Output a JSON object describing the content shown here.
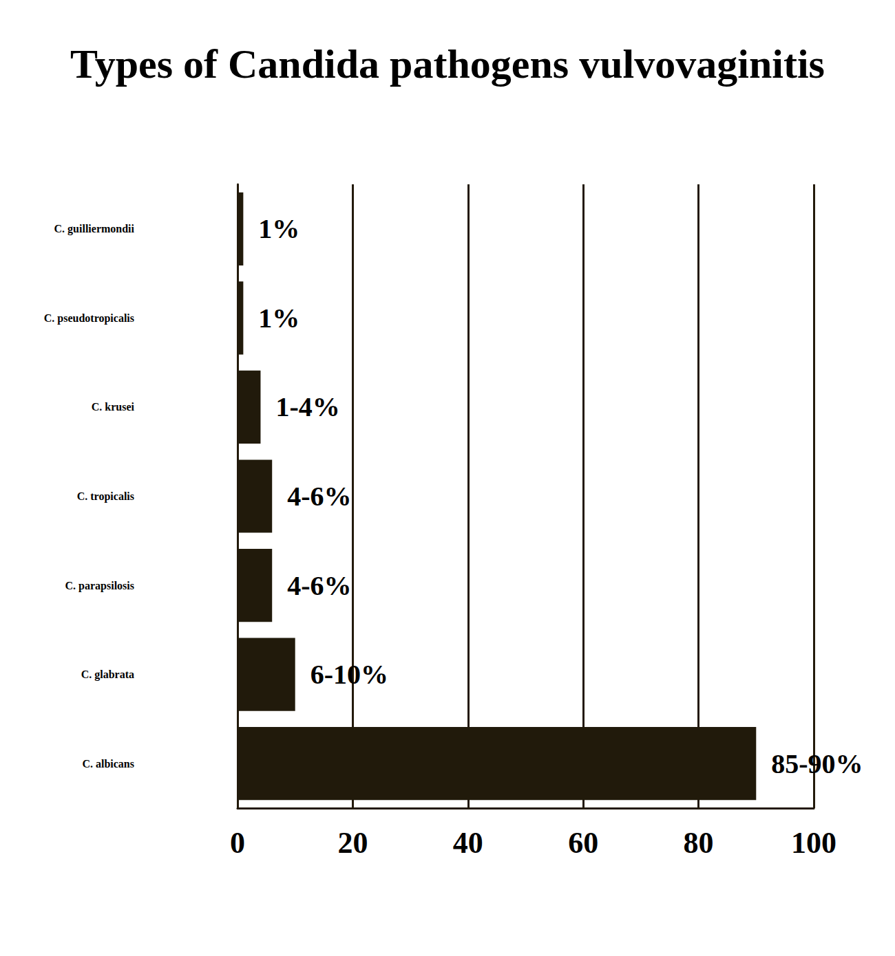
{
  "chart_data": {
    "type": "bar",
    "title": "Types of Candida pathogens vulvovaginitis",
    "orientation": "horizontal",
    "categories": [
      "C. guilliermondii",
      "C. pseudotropicalis",
      "C. krusei",
      "C. tropicalis",
      "C. parapsilosis",
      "C. glabrata",
      "C. albicans"
    ],
    "values": [
      1,
      1,
      4,
      6,
      6,
      10,
      90
    ],
    "value_labels": [
      "1%",
      "1%",
      "1-4%",
      "4-6%",
      "4-6%",
      "6-10%",
      "85-90%"
    ],
    "color": "#211a0b",
    "xlim": [
      0,
      100
    ],
    "xticks": [
      0,
      20,
      40,
      60,
      80,
      100
    ],
    "grid": true,
    "data_labels": true
  }
}
